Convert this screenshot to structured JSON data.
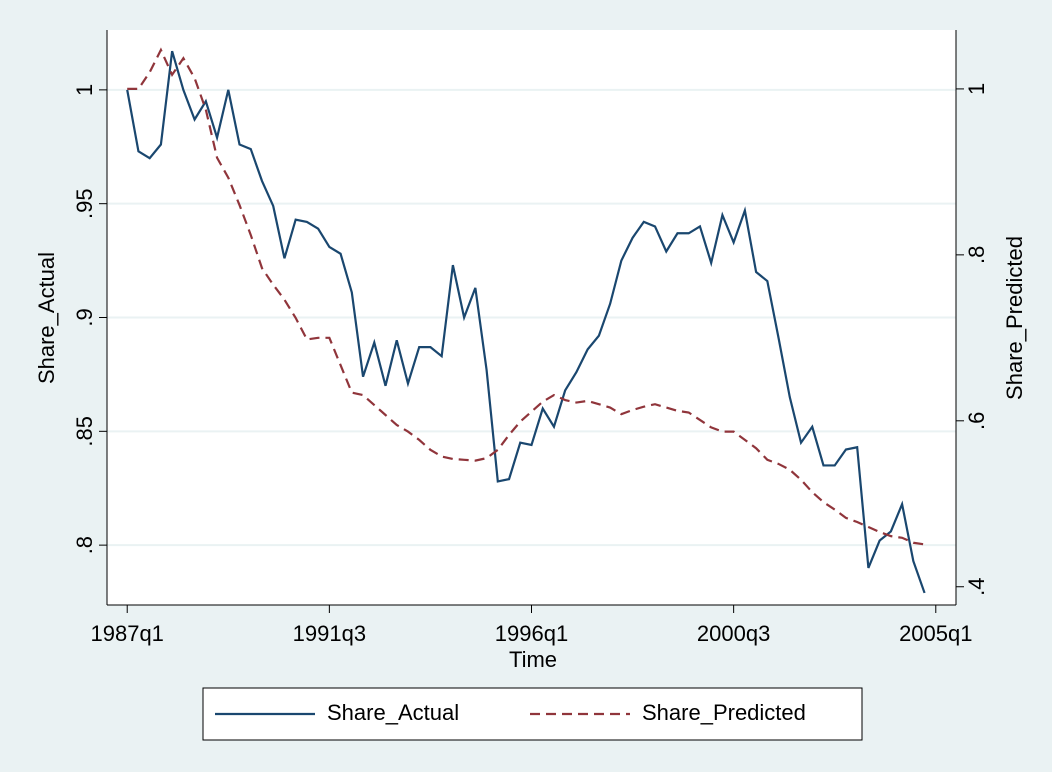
{
  "chart_data": {
    "type": "line",
    "x_label": "Time",
    "y_label": "Share_Actual",
    "y2_label": "Share_Predicted",
    "x": [
      108,
      109,
      110,
      111,
      112,
      113,
      114,
      115,
      116,
      117,
      118,
      119,
      120,
      121,
      122,
      123,
      124,
      125,
      126,
      127,
      128,
      129,
      130,
      131,
      132,
      133,
      134,
      135,
      136,
      137,
      138,
      139,
      140,
      141,
      142,
      143,
      144,
      145,
      146,
      147,
      148,
      149,
      150,
      151,
      152,
      153,
      154,
      155,
      156,
      157,
      158,
      159,
      160,
      161,
      162,
      163,
      164,
      165,
      166,
      167,
      168,
      169,
      170,
      171,
      172,
      173,
      174,
      175,
      176,
      177,
      178,
      179
    ],
    "xlim": [
      106.2,
      181.8
    ],
    "xticks": [
      {
        "value": 108,
        "label": "1987q1"
      },
      {
        "value": 126,
        "label": "1991q3"
      },
      {
        "value": 144,
        "label": "1996q1"
      },
      {
        "value": 162,
        "label": "2000q3"
      },
      {
        "value": 180,
        "label": "2005q1"
      }
    ],
    "ylim": [
      0.7737,
      1.0263
    ],
    "yticks": [
      {
        "value": 0.8,
        "label": ".8"
      },
      {
        "value": 0.85,
        "label": ".85"
      },
      {
        "value": 0.9,
        "label": ".9"
      },
      {
        "value": 0.95,
        "label": ".95"
      },
      1
    ],
    "y2lim": [
      0.378,
      1.071
    ],
    "y2ticks": [
      {
        "value": 0.4,
        "label": ".4"
      },
      {
        "value": 0.6,
        "label": ".6"
      },
      {
        "value": 0.8,
        "label": ".8"
      },
      1
    ],
    "grid": true,
    "legend": "bottom",
    "series": [
      {
        "name": "Share_Actual",
        "color": "#1a476f",
        "style": "solid",
        "values": [
          1.0,
          0.973,
          0.97,
          0.976,
          1.017,
          1.0,
          0.987,
          0.995,
          0.979,
          1.0,
          0.976,
          0.974,
          0.96,
          0.949,
          0.926,
          0.943,
          0.942,
          0.939,
          0.931,
          0.928,
          0.911,
          0.874,
          0.889,
          0.87,
          0.89,
          0.871,
          0.887,
          0.887,
          0.883,
          0.923,
          0.9,
          0.913,
          0.877,
          0.828,
          0.829,
          0.845,
          0.844,
          0.86,
          0.852,
          0.868,
          0.876,
          0.886,
          0.892,
          0.906,
          0.925,
          0.935,
          0.942,
          0.94,
          0.929,
          0.937,
          0.937,
          0.94,
          0.924,
          0.945,
          0.933,
          0.947,
          0.92,
          0.916,
          0.891,
          0.865,
          0.845,
          0.852,
          0.835,
          0.835,
          0.842,
          0.843,
          0.79,
          0.802,
          0.806,
          0.818,
          0.793,
          0.779
        ]
      },
      {
        "name": "Share_Predicted",
        "color": "#90353b",
        "style": "dashed",
        "axis": "y2",
        "values": [
          1.0,
          1.0,
          1.02,
          1.047,
          1.017,
          1.037,
          1.013,
          0.975,
          0.917,
          0.893,
          0.86,
          0.824,
          0.784,
          0.764,
          0.746,
          0.724,
          0.698,
          0.7,
          0.7,
          0.667,
          0.634,
          0.631,
          0.619,
          0.607,
          0.595,
          0.587,
          0.577,
          0.565,
          0.557,
          0.554,
          0.553,
          0.552,
          0.555,
          0.565,
          0.583,
          0.599,
          0.611,
          0.623,
          0.631,
          0.625,
          0.622,
          0.624,
          0.62,
          0.616,
          0.608,
          0.613,
          0.617,
          0.62,
          0.616,
          0.612,
          0.61,
          0.601,
          0.592,
          0.587,
          0.587,
          0.577,
          0.567,
          0.553,
          0.548,
          0.541,
          0.529,
          0.514,
          0.502,
          0.493,
          0.483,
          0.478,
          0.472,
          0.466,
          0.461,
          0.459,
          0.453,
          0.451
        ]
      }
    ]
  }
}
